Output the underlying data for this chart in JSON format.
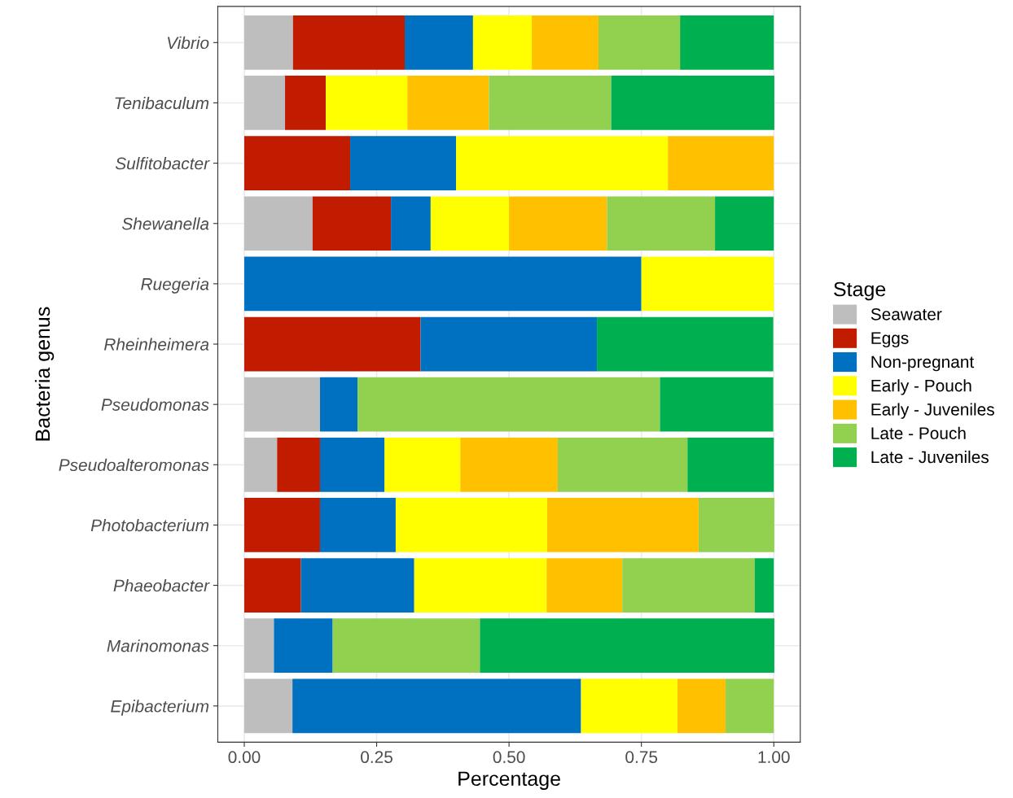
{
  "chart_data": {
    "type": "bar",
    "orientation": "horizontal",
    "stacked": true,
    "xlabel": "Percentage",
    "ylabel": "Bacteria genus",
    "legend_title": "Stage",
    "legend": "right",
    "grid": true,
    "categories": [
      "Vibrio",
      "Tenibaculum",
      "Sulfitobacter",
      "Shewanella",
      "Ruegeria",
      "Rheinheimera",
      "Pseudomonas",
      "Pseudoalteromonas",
      "Photobacterium",
      "Phaeobacter",
      "Marinomonas",
      "Epibacterium"
    ],
    "xlim": [
      -0.05,
      1.05
    ],
    "xticks": [
      {
        "value": 0,
        "label": "0.00"
      },
      {
        "value": 0.25,
        "label": "0.25"
      },
      {
        "value": 0.5,
        "label": "0.50"
      },
      {
        "value": 0.75,
        "label": "0.75"
      },
      {
        "value": 1,
        "label": "1.00"
      }
    ],
    "series": [
      {
        "name": "Seawater",
        "color": "#bebebe",
        "values": [
          0.092,
          0.077,
          0,
          0.129,
          0,
          0,
          0.143,
          0.062,
          0,
          0,
          0.056,
          0.091
        ]
      },
      {
        "name": "Eggs",
        "color": "#c11b00",
        "values": [
          0.211,
          0.077,
          0.2,
          0.148,
          0,
          0.333,
          0,
          0.081,
          0.143,
          0.107,
          0,
          0
        ]
      },
      {
        "name": "Non-pregnant",
        "color": "#0070c0",
        "values": [
          0.129,
          0,
          0.2,
          0.075,
          0.75,
          0.333,
          0.071,
          0.122,
          0.143,
          0.214,
          0.111,
          0.545
        ]
      },
      {
        "name": "Early - Pouch",
        "color": "#ffff00",
        "values": [
          0.111,
          0.154,
          0.4,
          0.148,
          0.25,
          0,
          0,
          0.143,
          0.286,
          0.25,
          0,
          0.182
        ]
      },
      {
        "name": "Early - Juveniles",
        "color": "#ffc000",
        "values": [
          0.126,
          0.154,
          0.2,
          0.185,
          0,
          0,
          0,
          0.184,
          0.286,
          0.143,
          0,
          0.091
        ]
      },
      {
        "name": "Late - Pouch",
        "color": "#92d050",
        "values": [
          0.154,
          0.231,
          0,
          0.204,
          0,
          0,
          0.571,
          0.245,
          0.143,
          0.25,
          0.278,
          0.091
        ]
      },
      {
        "name": "Late - Juveniles",
        "color": "#00b050",
        "values": [
          0.177,
          0.308,
          0,
          0.111,
          0,
          0.333,
          0.214,
          0.163,
          0,
          0.036,
          0.556,
          0
        ]
      }
    ]
  }
}
